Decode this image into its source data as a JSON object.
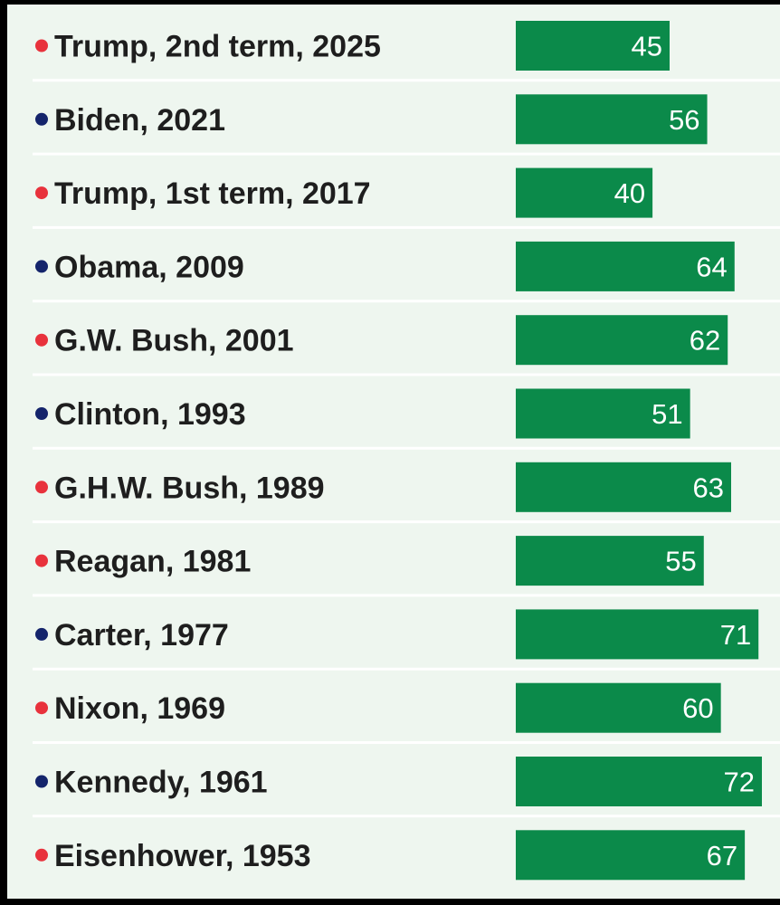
{
  "chart_data": {
    "type": "bar",
    "orientation": "horizontal",
    "categories": [
      "Trump, 2nd term, 2025",
      "Biden, 2021",
      "Trump, 1st term, 2017",
      "Obama, 2009",
      "G.W. Bush, 2001",
      "Clinton, 1993",
      "G.H.W. Bush, 1989",
      "Reagan, 1981",
      "Carter, 1977",
      "Nixon, 1969",
      "Kennedy, 1961",
      "Eisenhower, 1953"
    ],
    "values": [
      45,
      56,
      40,
      64,
      62,
      51,
      63,
      55,
      71,
      60,
      72,
      67
    ],
    "party": [
      "R",
      "D",
      "R",
      "D",
      "R",
      "D",
      "R",
      "R",
      "D",
      "R",
      "D",
      "R"
    ],
    "xlim": [
      0,
      72
    ],
    "grid": false,
    "legend": "none"
  },
  "colors": {
    "bar": "#0b8a4a",
    "background": "#eef6ef",
    "separator": "#ffffff",
    "label": "#1e1e1e",
    "value": "#ffffff",
    "party_R": "#e8323c",
    "party_D": "#14246b"
  }
}
